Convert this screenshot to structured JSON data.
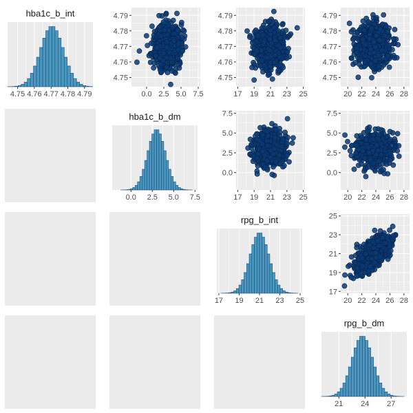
{
  "chart_data": {
    "type": "pairs",
    "layout": {
      "rows": 4,
      "cols": 4,
      "lower_triangle": "blank",
      "diagonal": "histogram",
      "upper_triangle": "scatter"
    },
    "colors": {
      "panel_bg": "#ebebeb",
      "grid": "#ffffff",
      "hist_fill": "#4a97bf",
      "hist_edge": "#1f4e79",
      "point_fill": "#0a3a73",
      "point_edge": "#06244a"
    },
    "variables": [
      {
        "name": "hba1c_b_int",
        "ticks": [
          4.75,
          4.76,
          4.77,
          4.78,
          4.79
        ],
        "tick_labels": [
          "4.75",
          "4.76",
          "4.77",
          "4.78",
          "4.79"
        ],
        "axis_range": [
          4.744,
          4.795
        ],
        "mean": 4.7705,
        "sd": 0.0069,
        "cloud_range": [
          4.7455,
          4.7925
        ]
      },
      {
        "name": "hba1c_b_dm",
        "ticks": [
          0.0,
          2.5,
          5.0,
          7.5
        ],
        "tick_labels": [
          "0.0",
          "2.5",
          "5.0",
          "7.5"
        ],
        "axis_range": [
          -2.2,
          7.8
        ],
        "mean": 3.0,
        "sd": 1.05,
        "cloud_range": [
          -1.8,
          6.8
        ]
      },
      {
        "name": "rpg_b_int",
        "ticks": [
          17,
          19,
          21,
          23,
          25
        ],
        "tick_labels": [
          "17",
          "19",
          "21",
          "23",
          "25"
        ],
        "axis_range": [
          16.8,
          25.2
        ],
        "mean": 21.0,
        "sd": 0.95,
        "cloud_range": [
          17.4,
          24.8
        ]
      },
      {
        "name": "rpg_b_dm",
        "ticks": [
          20,
          22,
          24,
          26,
          28
        ],
        "tick_labels": [
          "20",
          "22",
          "24",
          "26",
          "28"
        ],
        "axis_range": [
          19.0,
          28.8
        ],
        "mean": 23.7,
        "sd": 1.2,
        "cloud_range": [
          19.5,
          28.2
        ]
      }
    ],
    "histogram_ticks": [
      {
        "ticks": [
          4.75,
          4.76,
          4.77,
          4.78,
          4.79
        ],
        "tick_labels": [
          "4.75",
          "4.76",
          "4.77",
          "4.78",
          "4.79"
        ]
      },
      {
        "ticks": [
          0.0,
          2.5,
          5.0,
          7.5
        ],
        "tick_labels": [
          "0.0",
          "2.5",
          "5.0",
          "7.5"
        ]
      },
      {
        "ticks": [
          17,
          19,
          21,
          23,
          25
        ],
        "tick_labels": [
          "17",
          "19",
          "21",
          "23",
          "25"
        ]
      },
      {
        "ticks": [
          21,
          24,
          27
        ],
        "tick_labels": [
          "21",
          "24",
          "27"
        ]
      }
    ],
    "scatter_correlations": {
      "0-1": 0.0,
      "0-2": 0.0,
      "0-3": 0.0,
      "1-2": 0.0,
      "1-3": 0.0,
      "2-3": 0.65
    },
    "n_points_per_scatter": 650,
    "histogram_bins": 30
  }
}
